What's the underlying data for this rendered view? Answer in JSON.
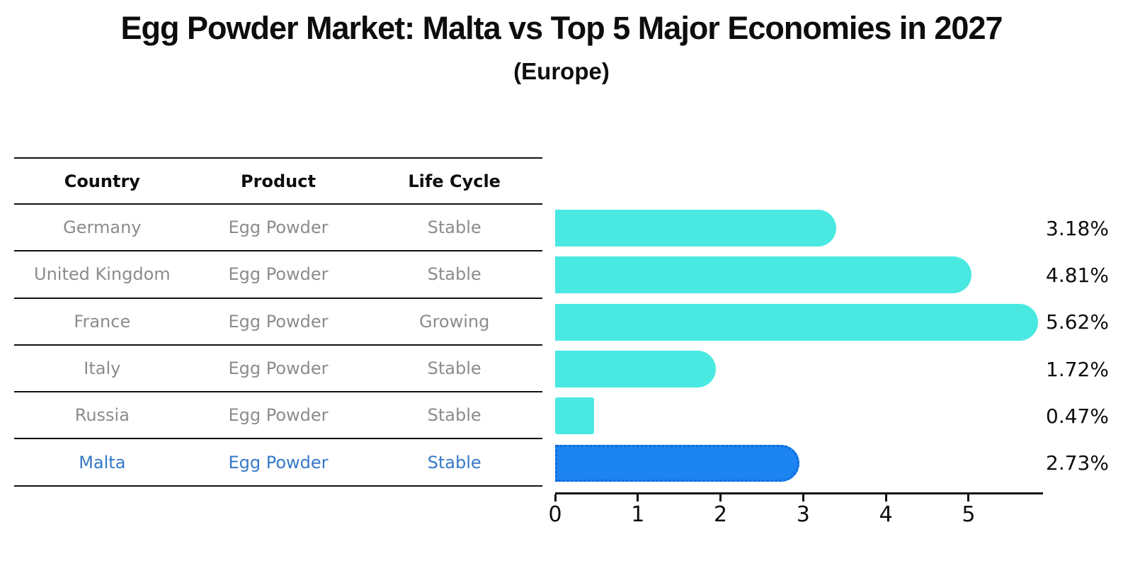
{
  "title": "Egg Powder Market: Malta vs Top 5 Major Economies in 2027",
  "subtitle": "(Europe)",
  "table": {
    "headers": [
      "Country",
      "Product",
      "Life Cycle"
    ],
    "rows": [
      {
        "country": "Germany",
        "product": "Egg Powder",
        "life_cycle": "Stable"
      },
      {
        "country": "United Kingdom",
        "product": "Egg Powder",
        "life_cycle": "Stable"
      },
      {
        "country": "France",
        "product": "Egg Powder",
        "life_cycle": "Growing"
      },
      {
        "country": "Italy",
        "product": "Egg Powder",
        "life_cycle": "Stable"
      },
      {
        "country": "Russia",
        "product": "Egg Powder",
        "life_cycle": "Stable"
      },
      {
        "country": "Malta",
        "product": "Egg Powder",
        "life_cycle": "Stable"
      }
    ]
  },
  "chart_data": {
    "type": "bar",
    "orientation": "horizontal",
    "title": "Egg Powder Market: Malta vs Top 5 Major Economies in 2027",
    "subtitle": "(Europe)",
    "categories": [
      "Germany",
      "United Kingdom",
      "France",
      "Italy",
      "Russia",
      "Malta"
    ],
    "values": [
      3.18,
      4.81,
      5.62,
      1.72,
      0.47,
      2.73
    ],
    "value_labels": [
      "3.18%",
      "4.81%",
      "5.62%",
      "1.72%",
      "0.47%",
      "2.73%"
    ],
    "xlabel": "",
    "ylabel": "",
    "xlim": [
      0,
      5.9
    ],
    "x_ticks": [
      0,
      1,
      2,
      3,
      4,
      5
    ],
    "grid": false,
    "legend": false,
    "highlight_index": 5,
    "colors": {
      "bar": "#49E9E1",
      "highlight_fill": "#1B84F0",
      "highlight_border": "#0E68DC",
      "highlight_text": "#3579C8",
      "row_text": "#8C8C8C",
      "line": "#111111"
    }
  }
}
